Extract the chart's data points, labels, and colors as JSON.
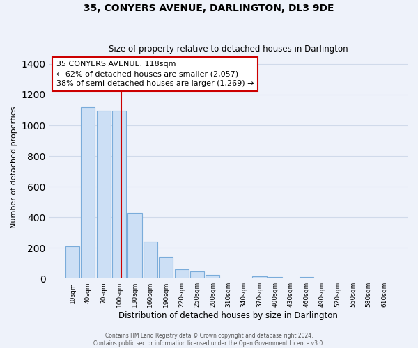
{
  "title": "35, CONYERS AVENUE, DARLINGTON, DL3 9DE",
  "subtitle": "Size of property relative to detached houses in Darlington",
  "xlabel": "Distribution of detached houses by size in Darlington",
  "ylabel": "Number of detached properties",
  "bin_labels": [
    "10sqm",
    "40sqm",
    "70sqm",
    "100sqm",
    "130sqm",
    "160sqm",
    "190sqm",
    "220sqm",
    "250sqm",
    "280sqm",
    "310sqm",
    "340sqm",
    "370sqm",
    "400sqm",
    "430sqm",
    "460sqm",
    "490sqm",
    "520sqm",
    "550sqm",
    "580sqm",
    "610sqm"
  ],
  "bar_values": [
    210,
    1120,
    1095,
    1095,
    430,
    240,
    140,
    60,
    48,
    22,
    0,
    0,
    15,
    10,
    0,
    8,
    0,
    0,
    0,
    0,
    0
  ],
  "bar_color": "#ccdff5",
  "bar_edge_color": "#7aacda",
  "vline_color": "#cc0000",
  "annotation_title": "35 CONYERS AVENUE: 118sqm",
  "annotation_line1": "← 62% of detached houses are smaller (2,057)",
  "annotation_line2": "38% of semi-detached houses are larger (1,269) →",
  "annotation_box_color": "white",
  "annotation_box_edge": "#cc0000",
  "ylim": [
    0,
    1450
  ],
  "footer1": "Contains HM Land Registry data © Crown copyright and database right 2024.",
  "footer2": "Contains public sector information licensed under the Open Government Licence v3.0.",
  "bg_color": "#eef2fa",
  "grid_color": "#d0daea"
}
